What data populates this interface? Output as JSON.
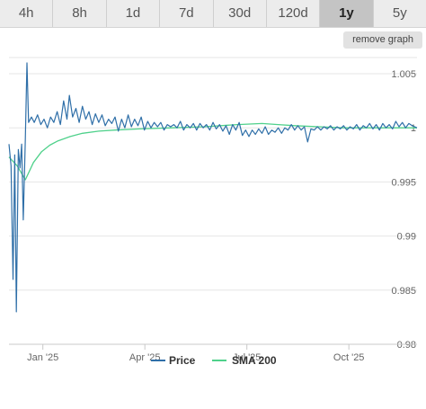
{
  "tabs": [
    {
      "label": "4h",
      "active": false
    },
    {
      "label": "8h",
      "active": false
    },
    {
      "label": "1d",
      "active": false
    },
    {
      "label": "7d",
      "active": false
    },
    {
      "label": "30d",
      "active": false
    },
    {
      "label": "120d",
      "active": false
    },
    {
      "label": "1y",
      "active": true
    },
    {
      "label": "5y",
      "active": false
    }
  ],
  "remove_graph_label": "remove graph",
  "chart_data": {
    "type": "line",
    "x_ticks": [
      "Jan '25",
      "Apr '25",
      "Jul '25",
      "Oct '25"
    ],
    "y_ticks": [
      "1.005",
      "1",
      "0.995",
      "0.99",
      "0.985",
      "0.98"
    ],
    "ylim": [
      0.98,
      1.005
    ],
    "grid": true,
    "legend_placement": "bottom",
    "series": [
      {
        "name": "Price",
        "color": "#2f6fa8",
        "points": [
          [
            0.0,
            0.9985
          ],
          [
            0.005,
            0.9965
          ],
          [
            0.01,
            0.986
          ],
          [
            0.014,
            0.9975
          ],
          [
            0.018,
            0.983
          ],
          [
            0.023,
            0.998
          ],
          [
            0.027,
            0.9963
          ],
          [
            0.031,
            0.9985
          ],
          [
            0.035,
            0.9915
          ],
          [
            0.04,
            0.999
          ],
          [
            0.044,
            1.006
          ],
          [
            0.048,
            1.0005
          ],
          [
            0.055,
            1.001
          ],
          [
            0.062,
            1.0005
          ],
          [
            0.07,
            1.0012
          ],
          [
            0.078,
            1.0003
          ],
          [
            0.086,
            1.0008
          ],
          [
            0.094,
            1.0
          ],
          [
            0.102,
            1.001
          ],
          [
            0.11,
            1.0005
          ],
          [
            0.118,
            1.0015
          ],
          [
            0.126,
            1.0003
          ],
          [
            0.134,
            1.0025
          ],
          [
            0.142,
            1.0008
          ],
          [
            0.148,
            1.003
          ],
          [
            0.156,
            1.001
          ],
          [
            0.164,
            1.0018
          ],
          [
            0.172,
            1.0005
          ],
          [
            0.18,
            1.002
          ],
          [
            0.188,
            1.0008
          ],
          [
            0.196,
            1.0015
          ],
          [
            0.204,
            1.0003
          ],
          [
            0.212,
            1.0013
          ],
          [
            0.22,
            1.0005
          ],
          [
            0.228,
            1.0012
          ],
          [
            0.236,
            1.0002
          ],
          [
            0.244,
            1.0008
          ],
          [
            0.252,
            1.0004
          ],
          [
            0.26,
            1.001
          ],
          [
            0.268,
            0.9997
          ],
          [
            0.276,
            1.0008
          ],
          [
            0.284,
            1.0
          ],
          [
            0.292,
            1.0012
          ],
          [
            0.3,
            1.0001
          ],
          [
            0.308,
            1.0008
          ],
          [
            0.316,
            1.0002
          ],
          [
            0.324,
            1.001
          ],
          [
            0.332,
            0.9998
          ],
          [
            0.34,
            1.0006
          ],
          [
            0.348,
            1.0
          ],
          [
            0.356,
            1.0005
          ],
          [
            0.364,
            1.0001
          ],
          [
            0.372,
            1.0005
          ],
          [
            0.38,
            0.9998
          ],
          [
            0.388,
            1.0003
          ],
          [
            0.396,
            1.0001
          ],
          [
            0.404,
            1.0003
          ],
          [
            0.412,
            1.0
          ],
          [
            0.42,
            1.0006
          ],
          [
            0.428,
            0.9998
          ],
          [
            0.436,
            1.0003
          ],
          [
            0.444,
            1.0
          ],
          [
            0.452,
            1.0004
          ],
          [
            0.46,
            0.9998
          ],
          [
            0.468,
            1.0004
          ],
          [
            0.476,
            1.0
          ],
          [
            0.484,
            1.0003
          ],
          [
            0.492,
            0.9998
          ],
          [
            0.5,
            1.0005
          ],
          [
            0.508,
            0.9999
          ],
          [
            0.516,
            1.0003
          ],
          [
            0.524,
            0.9997
          ],
          [
            0.532,
            1.0002
          ],
          [
            0.54,
            0.9994
          ],
          [
            0.548,
            1.0003
          ],
          [
            0.556,
            0.9998
          ],
          [
            0.564,
            1.0005
          ],
          [
            0.572,
            0.9993
          ],
          [
            0.58,
            0.9998
          ],
          [
            0.588,
            0.9992
          ],
          [
            0.596,
            0.9998
          ],
          [
            0.604,
            0.9994
          ],
          [
            0.612,
            0.9999
          ],
          [
            0.62,
            0.9995
          ],
          [
            0.628,
            1.0001
          ],
          [
            0.636,
            0.9994
          ],
          [
            0.644,
            0.9998
          ],
          [
            0.652,
            0.9996
          ],
          [
            0.66,
            1.0
          ],
          [
            0.668,
            0.9995
          ],
          [
            0.676,
            1.0
          ],
          [
            0.684,
            0.9998
          ],
          [
            0.692,
            1.0003
          ],
          [
            0.7,
            0.9998
          ],
          [
            0.708,
            1.0002
          ],
          [
            0.716,
            0.9998
          ],
          [
            0.724,
            1.0001
          ],
          [
            0.732,
            0.9987
          ],
          [
            0.74,
            0.9999
          ],
          [
            0.748,
            0.9998
          ],
          [
            0.756,
            1.0001
          ],
          [
            0.764,
            0.9998
          ],
          [
            0.772,
            1.0001
          ],
          [
            0.78,
            0.9999
          ],
          [
            0.788,
            1.0002
          ],
          [
            0.796,
            0.9998
          ],
          [
            0.804,
            1.0001
          ],
          [
            0.812,
            0.9999
          ],
          [
            0.82,
            1.0002
          ],
          [
            0.828,
            0.9998
          ],
          [
            0.836,
            1.0001
          ],
          [
            0.844,
            0.9999
          ],
          [
            0.852,
            1.0003
          ],
          [
            0.86,
            0.9998
          ],
          [
            0.868,
            1.0002
          ],
          [
            0.876,
            1.0
          ],
          [
            0.884,
            1.0004
          ],
          [
            0.892,
            0.9999
          ],
          [
            0.9,
            1.0003
          ],
          [
            0.908,
            0.9998
          ],
          [
            0.916,
            1.0004
          ],
          [
            0.924,
            1.0
          ],
          [
            0.932,
            1.0003
          ],
          [
            0.94,
            0.9999
          ],
          [
            0.948,
            1.0006
          ],
          [
            0.956,
            1.0001
          ],
          [
            0.964,
            1.0005
          ],
          [
            0.972,
            1.0
          ],
          [
            0.98,
            1.0004
          ],
          [
            0.988,
            1.0002
          ],
          [
            1.0,
            1.0
          ]
        ]
      },
      {
        "name": "SMA 200",
        "color": "#4fd18b",
        "points": [
          [
            0.0,
            0.9973
          ],
          [
            0.02,
            0.9965
          ],
          [
            0.04,
            0.9952
          ],
          [
            0.06,
            0.9968
          ],
          [
            0.08,
            0.9978
          ],
          [
            0.1,
            0.9984
          ],
          [
            0.12,
            0.9988
          ],
          [
            0.15,
            0.9992
          ],
          [
            0.18,
            0.9995
          ],
          [
            0.22,
            0.9997
          ],
          [
            0.26,
            0.9998
          ],
          [
            0.32,
            0.9999
          ],
          [
            0.4,
            1.0
          ],
          [
            0.48,
            1.0001
          ],
          [
            0.56,
            1.0003
          ],
          [
            0.62,
            1.0004
          ],
          [
            0.66,
            1.0003
          ],
          [
            0.7,
            1.0002
          ],
          [
            0.76,
            1.0001
          ],
          [
            0.82,
            1.0
          ],
          [
            0.88,
            1.0
          ],
          [
            0.94,
            1.0
          ],
          [
            1.0,
            1.0
          ]
        ]
      }
    ]
  }
}
